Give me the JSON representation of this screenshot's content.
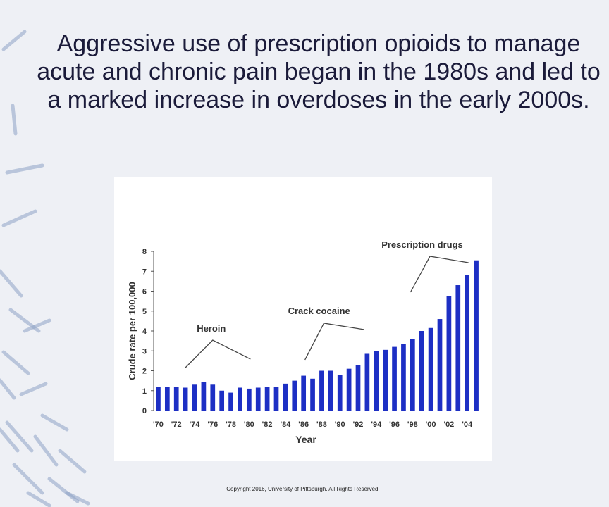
{
  "slide": {
    "title": "Aggressive use of prescription opioids to manage acute and chronic pain began in the 1980s and led to a marked increase in overdoses in the early 2000s.",
    "copyright": "Copyright 2016, University of Pittsburgh. All Rights Reserved."
  },
  "colors": {
    "bar": "#1d2fc4",
    "background": "#eef0f5",
    "decoration": "#8fa3c6"
  },
  "chart_data": {
    "type": "bar",
    "xlabel": "Year",
    "ylabel": "Crude rate per 100,000",
    "ylim": [
      0,
      8
    ],
    "yticks": [
      0,
      1,
      2,
      3,
      4,
      5,
      6,
      7,
      8
    ],
    "grid": false,
    "categories": [
      "1970",
      "1971",
      "1972",
      "1973",
      "1974",
      "1975",
      "1976",
      "1977",
      "1978",
      "1979",
      "1980",
      "1981",
      "1982",
      "1983",
      "1984",
      "1985",
      "1986",
      "1987",
      "1988",
      "1989",
      "1990",
      "1991",
      "1992",
      "1993",
      "1994",
      "1995",
      "1996",
      "1997",
      "1998",
      "1999",
      "2000",
      "2001",
      "2002",
      "2003",
      "2004",
      "2005"
    ],
    "x_tick_labels": [
      "'70",
      "'72",
      "'74",
      "'76",
      "'78",
      "'80",
      "'82",
      "'84",
      "'86",
      "'88",
      "'90",
      "'92",
      "'94",
      "'96",
      "'98",
      "'00",
      "'02",
      "'04"
    ],
    "values": [
      1.2,
      1.2,
      1.2,
      1.15,
      1.3,
      1.45,
      1.3,
      1.0,
      0.9,
      1.15,
      1.1,
      1.15,
      1.2,
      1.2,
      1.35,
      1.5,
      1.75,
      1.6,
      2.0,
      2.0,
      1.8,
      2.1,
      2.3,
      2.85,
      3.0,
      3.05,
      3.2,
      3.35,
      3.6,
      4.0,
      4.15,
      4.6,
      5.75,
      6.3,
      6.8,
      7.55
    ],
    "annotations": [
      {
        "text": "Heroin",
        "from_year": "1973",
        "to_year": "1980",
        "peak_year": "1976"
      },
      {
        "text": "Crack cocaine",
        "from_year": "1986",
        "to_year": "1993"
      },
      {
        "text": "Prescription drugs",
        "from_year": "1998",
        "to_year": "2004"
      }
    ]
  }
}
